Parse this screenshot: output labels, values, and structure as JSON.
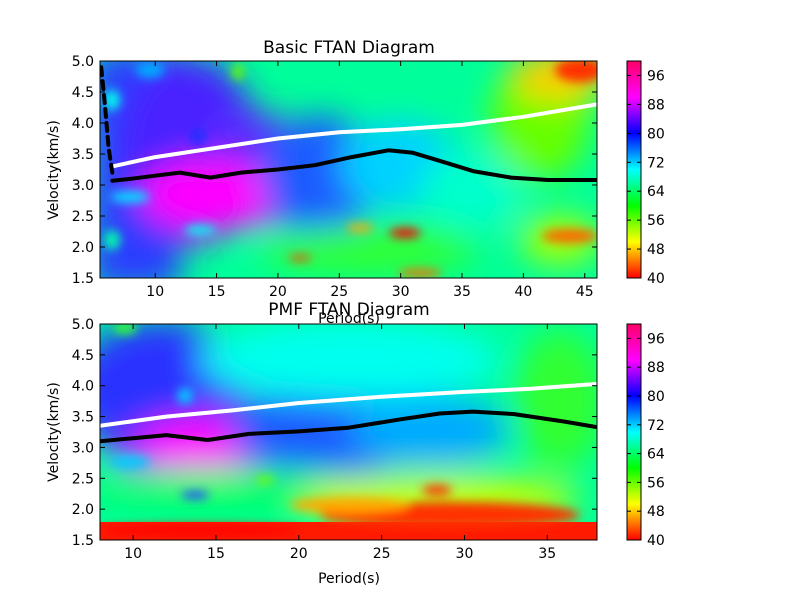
{
  "chart_data": [
    {
      "type": "heatmap",
      "title": "Basic FTAN Diagram",
      "xlabel": "Period(s)",
      "ylabel": "Velocity(km/s)",
      "xlim": [
        5.5,
        46
      ],
      "ylim": [
        1.5,
        5.0
      ],
      "xticks": [
        "10",
        "15",
        "20",
        "25",
        "30",
        "35",
        "40",
        "45"
      ],
      "yticks": [
        "1.5",
        "2.0",
        "2.5",
        "3.0",
        "3.5",
        "4.0",
        "4.5",
        "5.0"
      ],
      "colorbar": {
        "range": [
          40,
          100
        ],
        "ticks": [
          "40",
          "48",
          "56",
          "64",
          "72",
          "80",
          "88",
          "96"
        ],
        "colormap": "hsv"
      },
      "series": [
        {
          "color": "#000000",
          "style": "solid",
          "x": [
            6.5,
            8,
            10,
            12,
            14.5,
            17,
            20,
            23,
            26,
            29,
            31,
            33,
            36,
            39,
            42,
            46
          ],
          "y": [
            3.07,
            3.1,
            3.15,
            3.2,
            3.12,
            3.2,
            3.25,
            3.32,
            3.45,
            3.56,
            3.52,
            3.4,
            3.22,
            3.12,
            3.08,
            3.08
          ]
        },
        {
          "color": "#ffffff",
          "style": "solid",
          "x": [
            6.5,
            10,
            15,
            20,
            25,
            30,
            35,
            40,
            46
          ],
          "y": [
            3.3,
            3.45,
            3.6,
            3.75,
            3.85,
            3.9,
            3.97,
            4.1,
            4.3
          ]
        },
        {
          "color": "#000000",
          "style": "dashed",
          "x": [
            5.6,
            5.9,
            6.2,
            6.5
          ],
          "y": [
            4.9,
            4.3,
            3.6,
            3.2
          ]
        }
      ]
    },
    {
      "type": "heatmap",
      "title": "PMF FTAN Diagram",
      "xlabel": "Period(s)",
      "ylabel": "Velocity(km/s)",
      "xlim": [
        8,
        38
      ],
      "ylim": [
        1.5,
        5.0
      ],
      "xticks": [
        "10",
        "15",
        "20",
        "25",
        "30",
        "35"
      ],
      "yticks": [
        "1.5",
        "2.0",
        "2.5",
        "3.0",
        "3.5",
        "4.0",
        "4.5",
        "5.0"
      ],
      "colorbar": {
        "range": [
          40,
          100
        ],
        "ticks": [
          "40",
          "48",
          "56",
          "64",
          "72",
          "80",
          "88",
          "96"
        ],
        "colormap": "hsv"
      },
      "series": [
        {
          "color": "#000000",
          "style": "solid",
          "x": [
            8,
            10,
            12,
            14.5,
            17,
            20,
            23,
            26,
            28.5,
            30.5,
            33,
            36,
            38
          ],
          "y": [
            3.1,
            3.15,
            3.2,
            3.12,
            3.22,
            3.26,
            3.32,
            3.45,
            3.55,
            3.58,
            3.54,
            3.42,
            3.33
          ]
        },
        {
          "color": "#ffffff",
          "style": "solid",
          "x": [
            8,
            12,
            16,
            20,
            25,
            30,
            34,
            38
          ],
          "y": [
            3.35,
            3.5,
            3.6,
            3.72,
            3.82,
            3.9,
            3.95,
            4.03
          ]
        }
      ]
    }
  ]
}
